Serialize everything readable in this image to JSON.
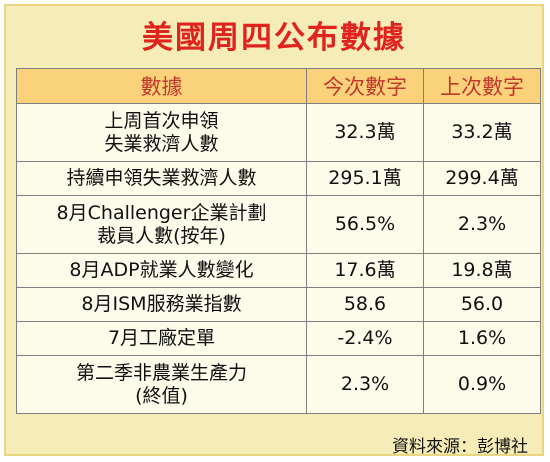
{
  "title": "美國周四公布數據",
  "columns": [
    "數據",
    "今次數字",
    "上次數字"
  ],
  "rows": [
    {
      "label": [
        "上周首次申領",
        "失業救濟人數"
      ],
      "current": "32.3萬",
      "previous": "33.2萬"
    },
    {
      "label": [
        "持續申領失業救濟人數"
      ],
      "current": "295.1萬",
      "previous": "299.4萬"
    },
    {
      "label": [
        "8月Challenger企業計劃",
        "裁員人數(按年)"
      ],
      "current": "56.5%",
      "previous": "2.3%"
    },
    {
      "label": [
        "8月ADP就業人數變化"
      ],
      "current": "17.6萬",
      "previous": "19.8萬"
    },
    {
      "label": [
        "8月ISM服務業指數"
      ],
      "current": "58.6",
      "previous": "56.0"
    },
    {
      "label": [
        "7月工廠定單"
      ],
      "current": "-2.4%",
      "previous": "1.6%"
    },
    {
      "label": [
        "第二季非農業生產力",
        "(終值)"
      ],
      "current": "2.3%",
      "previous": "0.9%"
    }
  ],
  "source": "資料來源：彭博社",
  "colors": {
    "title": "#e0231c",
    "header_bg": "#fbd27c",
    "header_text": "#c0392b",
    "card_bg": "#f6ecb8"
  }
}
